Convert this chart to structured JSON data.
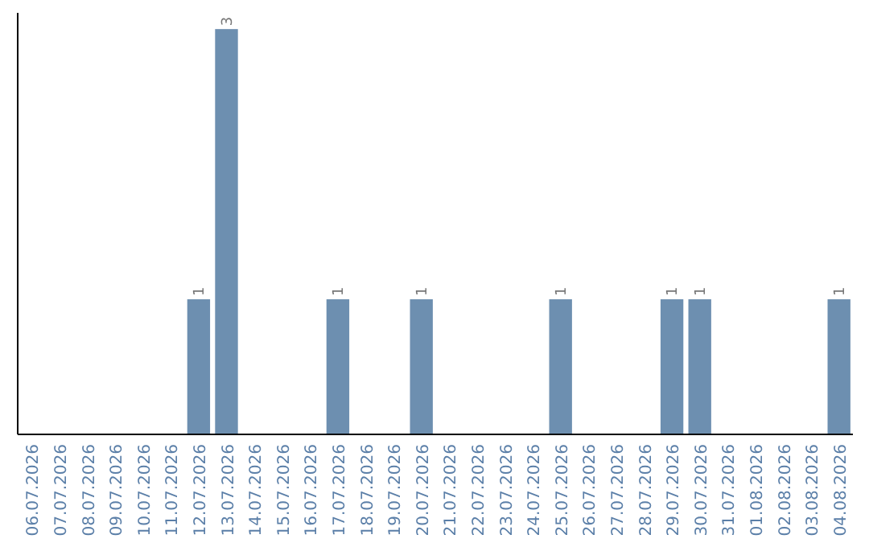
{
  "chart_data": {
    "type": "bar",
    "categories": [
      "06.07.2026",
      "07.07.2026",
      "08.07.2026",
      "09.07.2026",
      "10.07.2026",
      "11.07.2026",
      "12.07.2026",
      "13.07.2026",
      "14.07.2026",
      "15.07.2026",
      "16.07.2026",
      "17.07.2026",
      "18.07.2026",
      "19.07.2026",
      "20.07.2026",
      "21.07.2026",
      "22.07.2026",
      "23.07.2026",
      "24.07.2026",
      "25.07.2026",
      "26.07.2026",
      "27.07.2026",
      "28.07.2026",
      "29.07.2026",
      "30.07.2026",
      "31.07.2026",
      "01.08.2026",
      "02.08.2026",
      "03.08.2026",
      "04.08.2026"
    ],
    "values": [
      0,
      0,
      0,
      0,
      0,
      0,
      1,
      3,
      0,
      0,
      0,
      1,
      0,
      0,
      1,
      0,
      0,
      0,
      0,
      1,
      0,
      0,
      0,
      1,
      1,
      0,
      0,
      0,
      0,
      1
    ],
    "value_labels": [
      null,
      null,
      null,
      null,
      null,
      null,
      "1",
      "3",
      null,
      null,
      null,
      "1",
      null,
      null,
      "1",
      null,
      null,
      null,
      null,
      "1",
      null,
      null,
      null,
      "1",
      "1",
      null,
      null,
      null,
      null,
      "1"
    ],
    "color": "#6d8fb0"
  }
}
